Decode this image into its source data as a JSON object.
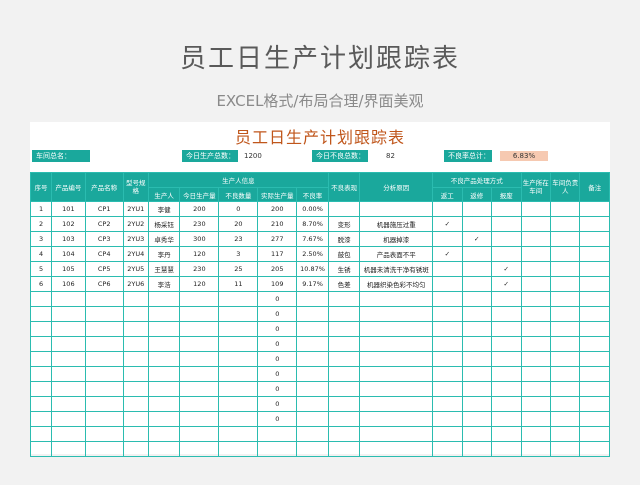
{
  "hero": {
    "title": "员工日生产计划跟踪表",
    "subtitle": "EXCEL格式/布局合理/界面美观"
  },
  "sheet": {
    "title": "员工日生产计划跟踪表",
    "summary": {
      "workshop_label": "车间总名：",
      "workshop_value": "",
      "total_label": "今日生产总数：",
      "total_value": "1200",
      "defect_label": "今日不良总数：",
      "defect_value": "82",
      "rate_label": "不良率总计：",
      "rate_value": "6.83%"
    },
    "headers": {
      "seq": "序号",
      "product_code": "产品编号",
      "product_name": "产品名称",
      "model": "型号规格",
      "production_info": "生产人信息",
      "producer": "生产人",
      "today_output": "今日生产量",
      "defect_qty": "不良数量",
      "actual_output": "实际生产量",
      "defect_rate": "不良率",
      "defect_appearance": "不良表现",
      "cause": "分析原因",
      "handling": "不良产品处理方式",
      "rework": "返工",
      "repair": "返修",
      "scrap": "报废",
      "workshop": "生产所在车间",
      "owner": "车间负责人",
      "remark": "备注"
    },
    "rows": [
      {
        "seq": "1",
        "code": "101",
        "name": "CP1",
        "model": "2YU1",
        "producer": "李健",
        "output": "200",
        "defect": "0",
        "actual": "200",
        "rate": "0.00%",
        "appearance": "",
        "cause": "",
        "rework": "",
        "repair": "",
        "scrap": ""
      },
      {
        "seq": "2",
        "code": "102",
        "name": "CP2",
        "model": "2YU2",
        "producer": "杨采钰",
        "output": "230",
        "defect": "20",
        "actual": "210",
        "rate": "8.70%",
        "appearance": "变形",
        "cause": "机器施压过重",
        "rework": "✓",
        "repair": "",
        "scrap": ""
      },
      {
        "seq": "3",
        "code": "103",
        "name": "CP3",
        "model": "2YU3",
        "producer": "卓秀华",
        "output": "300",
        "defect": "23",
        "actual": "277",
        "rate": "7.67%",
        "appearance": "脱漆",
        "cause": "机器掉漆",
        "rework": "",
        "repair": "✓",
        "scrap": ""
      },
      {
        "seq": "4",
        "code": "104",
        "name": "CP4",
        "model": "2YU4",
        "producer": "李丹",
        "output": "120",
        "defect": "3",
        "actual": "117",
        "rate": "2.50%",
        "appearance": "鼓包",
        "cause": "产品表面不平",
        "rework": "✓",
        "repair": "",
        "scrap": ""
      },
      {
        "seq": "5",
        "code": "105",
        "name": "CP5",
        "model": "2YU5",
        "producer": "王慧慧",
        "output": "230",
        "defect": "25",
        "actual": "205",
        "rate": "10.87%",
        "appearance": "生锈",
        "cause": "机器未清洗干净有锈斑",
        "rework": "",
        "repair": "",
        "scrap": "✓"
      },
      {
        "seq": "6",
        "code": "106",
        "name": "CP6",
        "model": "2YU6",
        "producer": "李浩",
        "output": "120",
        "defect": "11",
        "actual": "109",
        "rate": "9.17%",
        "appearance": "色差",
        "cause": "机器织染色彩不均匀",
        "rework": "",
        "repair": "",
        "scrap": "✓"
      },
      {
        "seq": "",
        "code": "",
        "name": "",
        "model": "",
        "producer": "",
        "output": "",
        "defect": "",
        "actual": "0",
        "rate": "",
        "appearance": "",
        "cause": "",
        "rework": "",
        "repair": "",
        "scrap": ""
      },
      {
        "seq": "",
        "code": "",
        "name": "",
        "model": "",
        "producer": "",
        "output": "",
        "defect": "",
        "actual": "0",
        "rate": "",
        "appearance": "",
        "cause": "",
        "rework": "",
        "repair": "",
        "scrap": ""
      },
      {
        "seq": "",
        "code": "",
        "name": "",
        "model": "",
        "producer": "",
        "output": "",
        "defect": "",
        "actual": "0",
        "rate": "",
        "appearance": "",
        "cause": "",
        "rework": "",
        "repair": "",
        "scrap": ""
      },
      {
        "seq": "",
        "code": "",
        "name": "",
        "model": "",
        "producer": "",
        "output": "",
        "defect": "",
        "actual": "0",
        "rate": "",
        "appearance": "",
        "cause": "",
        "rework": "",
        "repair": "",
        "scrap": ""
      },
      {
        "seq": "",
        "code": "",
        "name": "",
        "model": "",
        "producer": "",
        "output": "",
        "defect": "",
        "actual": "0",
        "rate": "",
        "appearance": "",
        "cause": "",
        "rework": "",
        "repair": "",
        "scrap": ""
      },
      {
        "seq": "",
        "code": "",
        "name": "",
        "model": "",
        "producer": "",
        "output": "",
        "defect": "",
        "actual": "0",
        "rate": "",
        "appearance": "",
        "cause": "",
        "rework": "",
        "repair": "",
        "scrap": ""
      },
      {
        "seq": "",
        "code": "",
        "name": "",
        "model": "",
        "producer": "",
        "output": "",
        "defect": "",
        "actual": "0",
        "rate": "",
        "appearance": "",
        "cause": "",
        "rework": "",
        "repair": "",
        "scrap": ""
      },
      {
        "seq": "",
        "code": "",
        "name": "",
        "model": "",
        "producer": "",
        "output": "",
        "defect": "",
        "actual": "0",
        "rate": "",
        "appearance": "",
        "cause": "",
        "rework": "",
        "repair": "",
        "scrap": ""
      },
      {
        "seq": "",
        "code": "",
        "name": "",
        "model": "",
        "producer": "",
        "output": "",
        "defect": "",
        "actual": "0",
        "rate": "",
        "appearance": "",
        "cause": "",
        "rework": "",
        "repair": "",
        "scrap": ""
      },
      {
        "seq": "",
        "code": "",
        "name": "",
        "model": "",
        "producer": "",
        "output": "",
        "defect": "",
        "actual": "",
        "rate": "",
        "appearance": "",
        "cause": "",
        "rework": "",
        "repair": "",
        "scrap": ""
      },
      {
        "seq": "",
        "code": "",
        "name": "",
        "model": "",
        "producer": "",
        "output": "",
        "defect": "",
        "actual": "",
        "rate": "",
        "appearance": "",
        "cause": "",
        "rework": "",
        "repair": "",
        "scrap": ""
      }
    ],
    "colors": {
      "header_bg": "#1aa89c",
      "border": "#2bbcb0",
      "title": "#c0561b",
      "rate_bg": "#f6c9b1"
    }
  }
}
